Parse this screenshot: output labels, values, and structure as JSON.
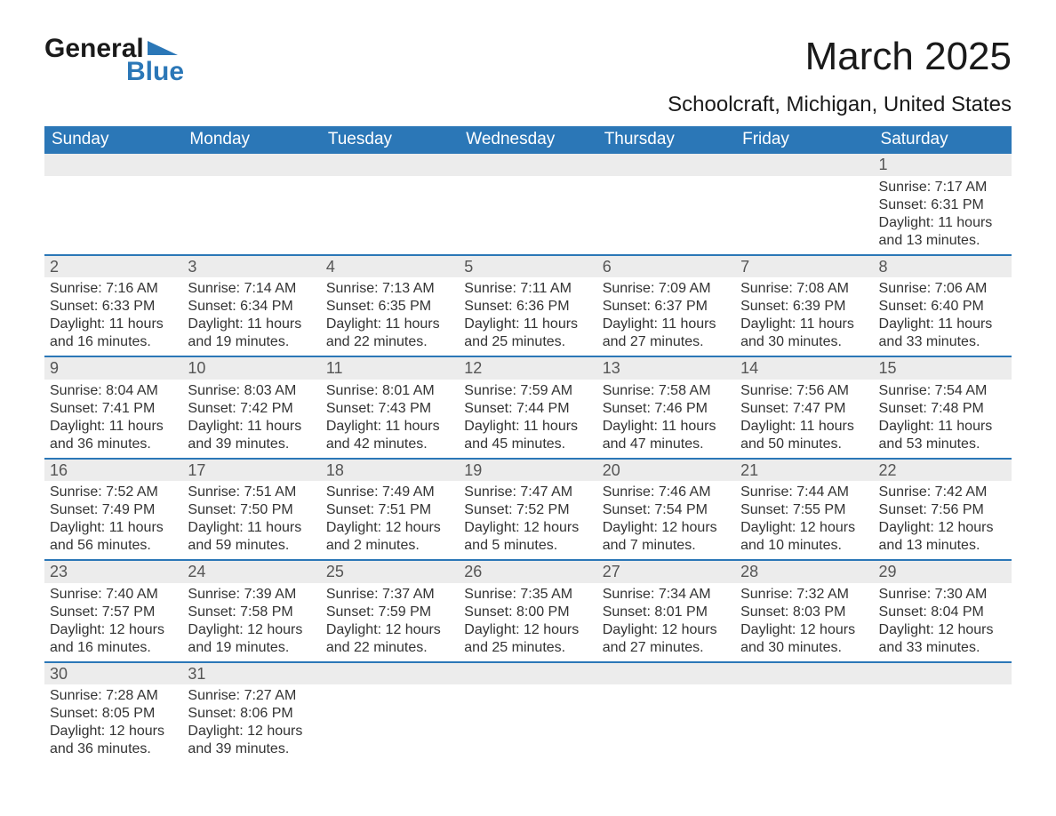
{
  "logo": {
    "word1": "General",
    "word2": "Blue",
    "triangle_color": "#2b77b7"
  },
  "header": {
    "month_title": "March 2025",
    "location": "Schoolcraft, Michigan, United States"
  },
  "calendar": {
    "header_bg": "#2b77b7",
    "header_text_color": "#ffffff",
    "row_separator_color": "#2b77b7",
    "daynum_bg": "#ececec",
    "text_color": "#333333",
    "day_headers": [
      "Sunday",
      "Monday",
      "Tuesday",
      "Wednesday",
      "Thursday",
      "Friday",
      "Saturday"
    ],
    "weeks": [
      [
        null,
        null,
        null,
        null,
        null,
        null,
        {
          "n": "1",
          "sunrise": "7:17 AM",
          "sunset": "6:31 PM",
          "daylight": "11 hours and 13 minutes."
        }
      ],
      [
        {
          "n": "2",
          "sunrise": "7:16 AM",
          "sunset": "6:33 PM",
          "daylight": "11 hours and 16 minutes."
        },
        {
          "n": "3",
          "sunrise": "7:14 AM",
          "sunset": "6:34 PM",
          "daylight": "11 hours and 19 minutes."
        },
        {
          "n": "4",
          "sunrise": "7:13 AM",
          "sunset": "6:35 PM",
          "daylight": "11 hours and 22 minutes."
        },
        {
          "n": "5",
          "sunrise": "7:11 AM",
          "sunset": "6:36 PM",
          "daylight": "11 hours and 25 minutes."
        },
        {
          "n": "6",
          "sunrise": "7:09 AM",
          "sunset": "6:37 PM",
          "daylight": "11 hours and 27 minutes."
        },
        {
          "n": "7",
          "sunrise": "7:08 AM",
          "sunset": "6:39 PM",
          "daylight": "11 hours and 30 minutes."
        },
        {
          "n": "8",
          "sunrise": "7:06 AM",
          "sunset": "6:40 PM",
          "daylight": "11 hours and 33 minutes."
        }
      ],
      [
        {
          "n": "9",
          "sunrise": "8:04 AM",
          "sunset": "7:41 PM",
          "daylight": "11 hours and 36 minutes."
        },
        {
          "n": "10",
          "sunrise": "8:03 AM",
          "sunset": "7:42 PM",
          "daylight": "11 hours and 39 minutes."
        },
        {
          "n": "11",
          "sunrise": "8:01 AM",
          "sunset": "7:43 PM",
          "daylight": "11 hours and 42 minutes."
        },
        {
          "n": "12",
          "sunrise": "7:59 AM",
          "sunset": "7:44 PM",
          "daylight": "11 hours and 45 minutes."
        },
        {
          "n": "13",
          "sunrise": "7:58 AM",
          "sunset": "7:46 PM",
          "daylight": "11 hours and 47 minutes."
        },
        {
          "n": "14",
          "sunrise": "7:56 AM",
          "sunset": "7:47 PM",
          "daylight": "11 hours and 50 minutes."
        },
        {
          "n": "15",
          "sunrise": "7:54 AM",
          "sunset": "7:48 PM",
          "daylight": "11 hours and 53 minutes."
        }
      ],
      [
        {
          "n": "16",
          "sunrise": "7:52 AM",
          "sunset": "7:49 PM",
          "daylight": "11 hours and 56 minutes."
        },
        {
          "n": "17",
          "sunrise": "7:51 AM",
          "sunset": "7:50 PM",
          "daylight": "11 hours and 59 minutes."
        },
        {
          "n": "18",
          "sunrise": "7:49 AM",
          "sunset": "7:51 PM",
          "daylight": "12 hours and 2 minutes."
        },
        {
          "n": "19",
          "sunrise": "7:47 AM",
          "sunset": "7:52 PM",
          "daylight": "12 hours and 5 minutes."
        },
        {
          "n": "20",
          "sunrise": "7:46 AM",
          "sunset": "7:54 PM",
          "daylight": "12 hours and 7 minutes."
        },
        {
          "n": "21",
          "sunrise": "7:44 AM",
          "sunset": "7:55 PM",
          "daylight": "12 hours and 10 minutes."
        },
        {
          "n": "22",
          "sunrise": "7:42 AM",
          "sunset": "7:56 PM",
          "daylight": "12 hours and 13 minutes."
        }
      ],
      [
        {
          "n": "23",
          "sunrise": "7:40 AM",
          "sunset": "7:57 PM",
          "daylight": "12 hours and 16 minutes."
        },
        {
          "n": "24",
          "sunrise": "7:39 AM",
          "sunset": "7:58 PM",
          "daylight": "12 hours and 19 minutes."
        },
        {
          "n": "25",
          "sunrise": "7:37 AM",
          "sunset": "7:59 PM",
          "daylight": "12 hours and 22 minutes."
        },
        {
          "n": "26",
          "sunrise": "7:35 AM",
          "sunset": "8:00 PM",
          "daylight": "12 hours and 25 minutes."
        },
        {
          "n": "27",
          "sunrise": "7:34 AM",
          "sunset": "8:01 PM",
          "daylight": "12 hours and 27 minutes."
        },
        {
          "n": "28",
          "sunrise": "7:32 AM",
          "sunset": "8:03 PM",
          "daylight": "12 hours and 30 minutes."
        },
        {
          "n": "29",
          "sunrise": "7:30 AM",
          "sunset": "8:04 PM",
          "daylight": "12 hours and 33 minutes."
        }
      ],
      [
        {
          "n": "30",
          "sunrise": "7:28 AM",
          "sunset": "8:05 PM",
          "daylight": "12 hours and 36 minutes."
        },
        {
          "n": "31",
          "sunrise": "7:27 AM",
          "sunset": "8:06 PM",
          "daylight": "12 hours and 39 minutes."
        },
        null,
        null,
        null,
        null,
        null
      ]
    ],
    "labels": {
      "sunrise": "Sunrise: ",
      "sunset": "Sunset: ",
      "daylight": "Daylight: "
    }
  }
}
